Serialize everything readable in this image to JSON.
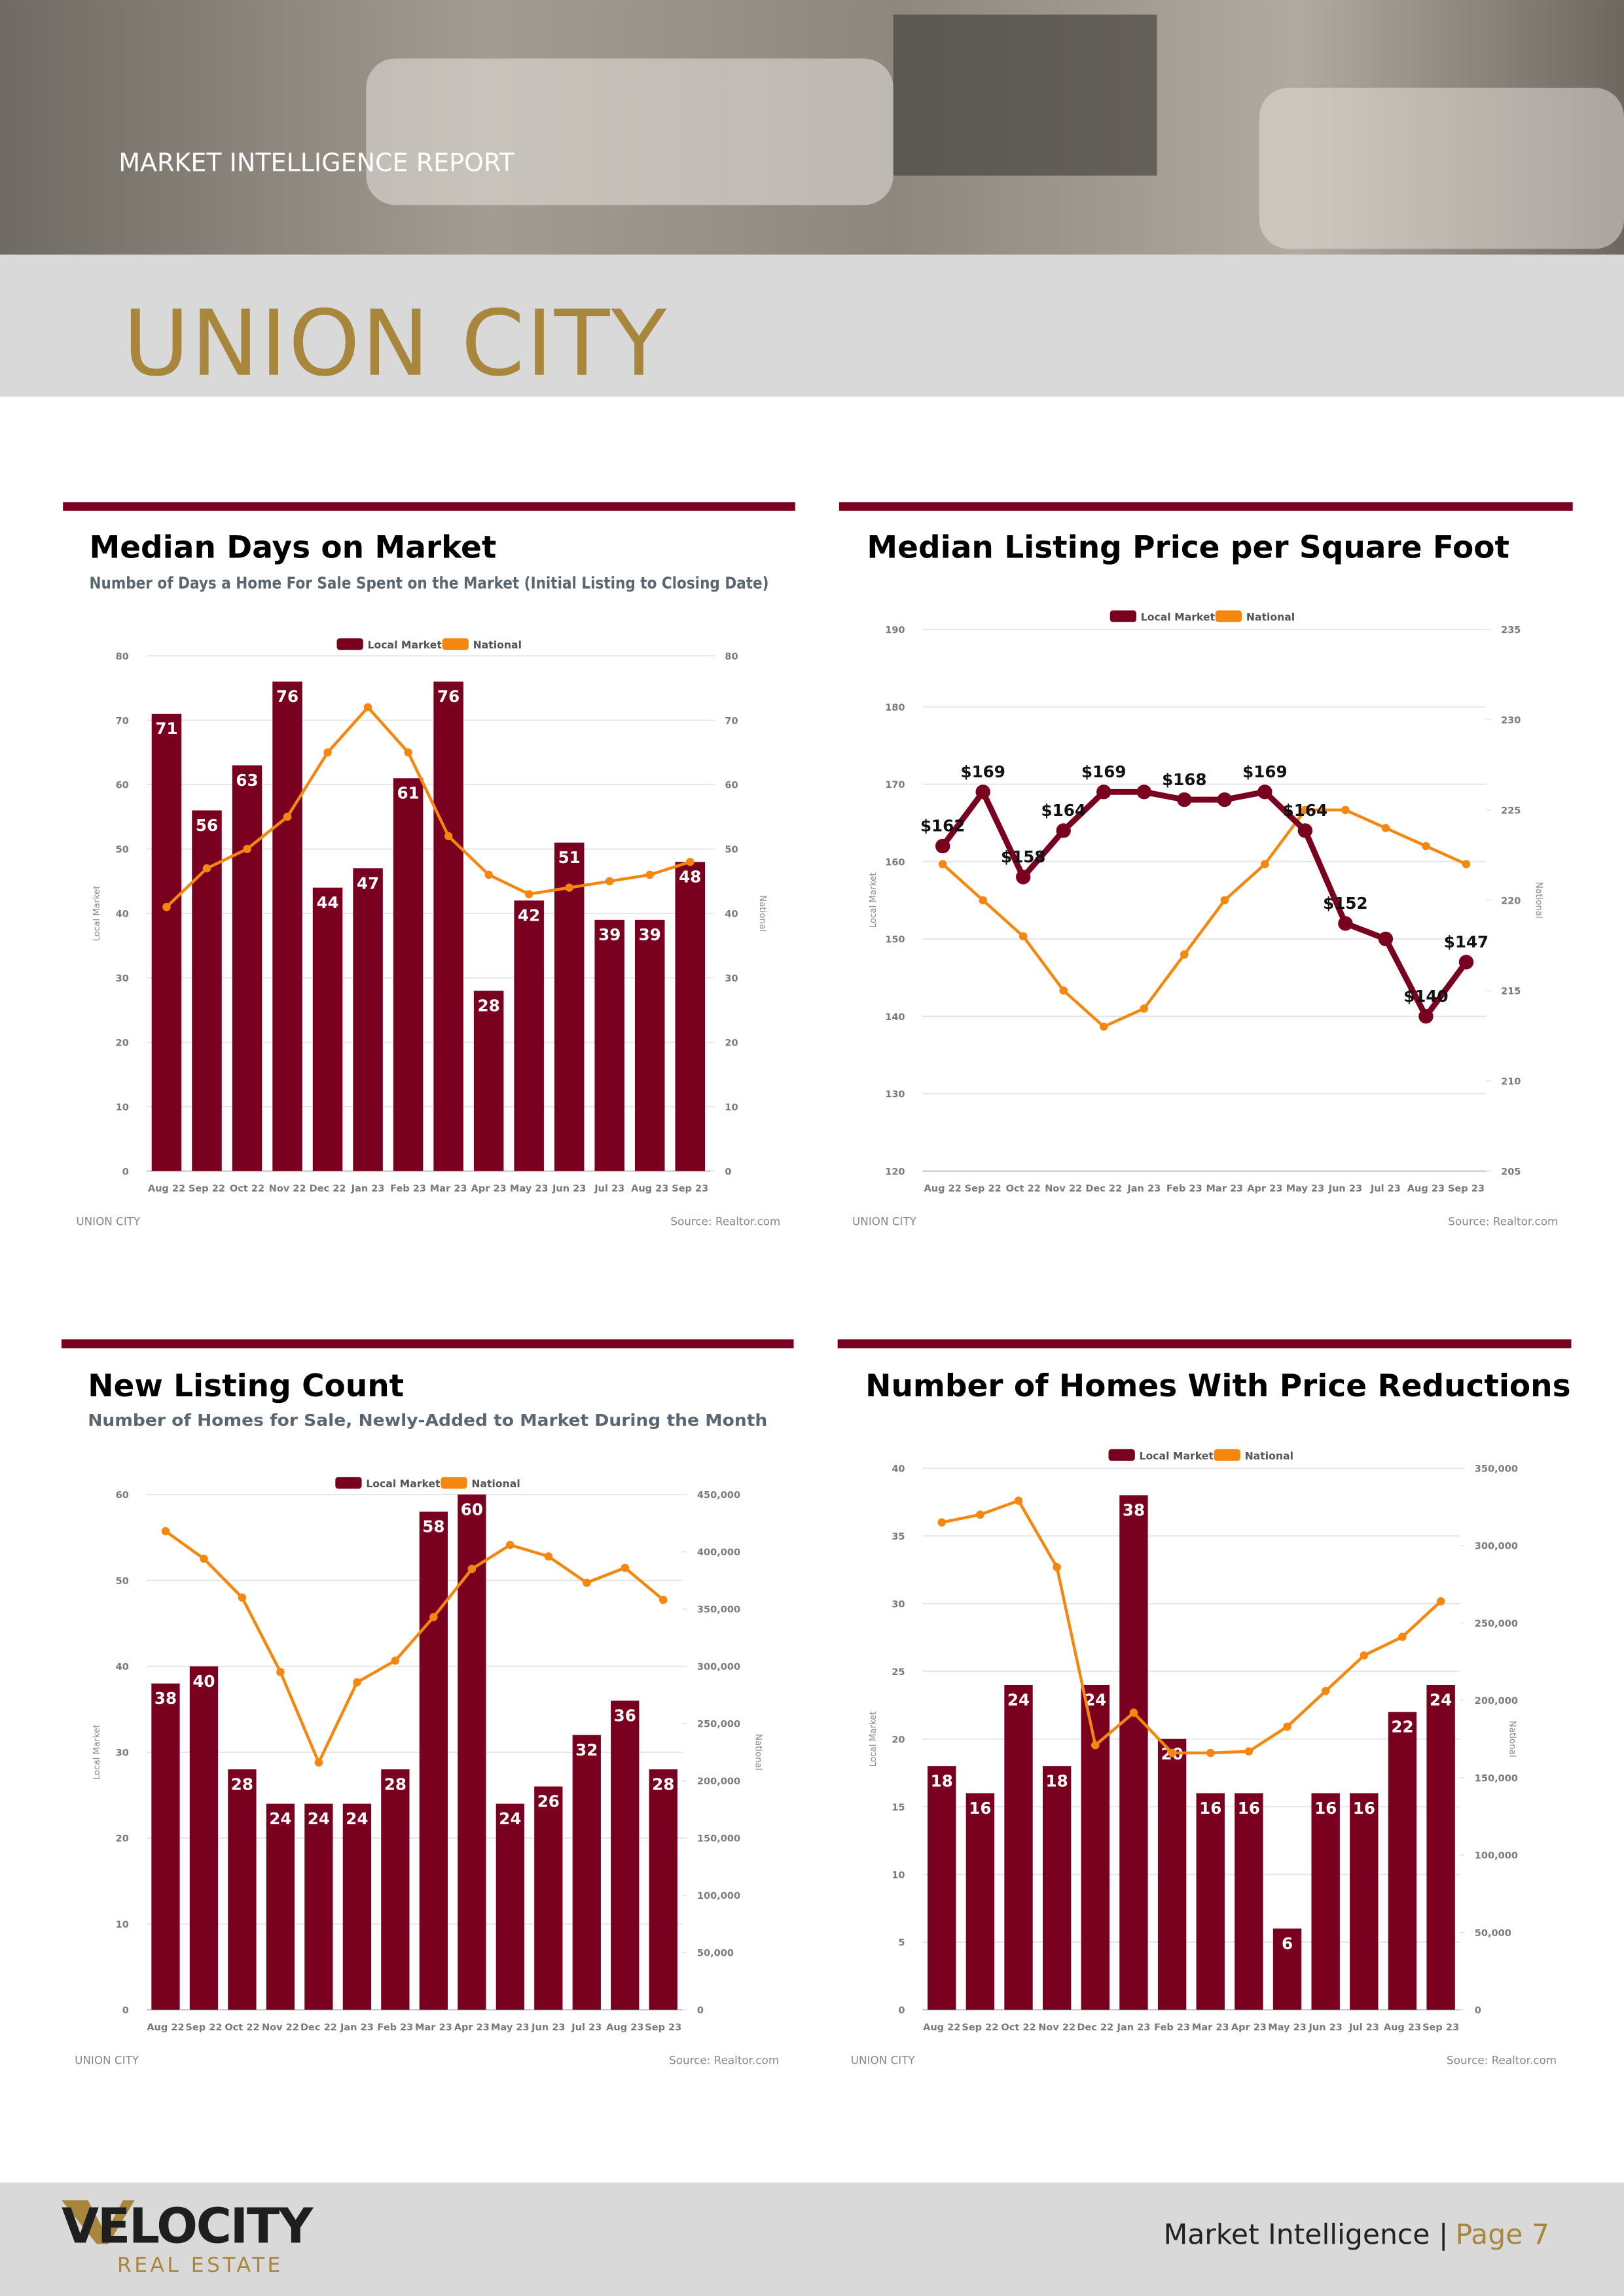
{
  "header": {
    "label": "MARKET INTELLIGENCE REPORT",
    "city": "UNION CITY"
  },
  "chart_data": [
    {
      "type": "combo",
      "title": "Median Days on Market",
      "subtitle": "Number of Days a Home For Sale Spent on the Market (Initial Listing to Closing Date)",
      "categories": [
        "Aug 22",
        "Sep 22",
        "Oct 22",
        "Nov 22",
        "Dec 22",
        "Jan 23",
        "Feb 23",
        "Mar 23",
        "Apr 23",
        "May 23",
        "Jun 23",
        "Jul 23",
        "Aug 23",
        "Sep 23"
      ],
      "series": [
        {
          "name": "Local Market",
          "color": "#7a0020",
          "mark": "bar",
          "axis": "y",
          "values": [
            71,
            56,
            63,
            76,
            44,
            47,
            61,
            76,
            28,
            42,
            51,
            39,
            39,
            48
          ]
        },
        {
          "name": "National",
          "color": "#f5870f",
          "mark": "line",
          "axis": "y2",
          "values": [
            41,
            47,
            50,
            55,
            65,
            72,
            65,
            52,
            46,
            43,
            44,
            45,
            46,
            48
          ]
        }
      ],
      "ylabel": "Local Market",
      "y2label": "National",
      "ylim": [
        0,
        80
      ],
      "yticks": [
        0,
        10,
        20,
        30,
        40,
        50,
        60,
        70,
        80
      ],
      "y2lim": [
        0,
        80
      ],
      "y2ticks": [
        0,
        10,
        20,
        30,
        40,
        50,
        60,
        70,
        80
      ],
      "grid": true,
      "note": "UNION CITY",
      "source": "Source: Realtor.com"
    },
    {
      "type": "line",
      "title": "Median Listing Price per Square Foot",
      "categories": [
        "Aug 22",
        "Sep 22",
        "Oct 22",
        "Nov 22",
        "Dec 22",
        "Jan 23",
        "Feb 23",
        "Mar 23",
        "Apr 23",
        "May 23",
        "Jun 23",
        "Jul 23",
        "Aug 23",
        "Sep 23"
      ],
      "series": [
        {
          "name": "Local Market",
          "color": "#7a0020",
          "mark": "line",
          "axis": "y",
          "values": [
            162,
            169,
            158,
            164,
            169,
            169,
            168,
            168,
            169,
            164,
            152,
            150,
            140,
            147
          ],
          "value_labels": [
            "$162",
            "$169",
            "$158",
            "$164",
            "$169",
            null,
            "$168",
            null,
            "$169",
            "$164",
            "$152",
            null,
            "$140",
            "$147"
          ]
        },
        {
          "name": "National",
          "color": "#f5870f",
          "mark": "line",
          "axis": "y2",
          "values": [
            222,
            220,
            218,
            215,
            213,
            214,
            217,
            220,
            222,
            225,
            225,
            224,
            223,
            222
          ]
        }
      ],
      "ylabel": "Local Market",
      "y2label": "National",
      "ylim": [
        120,
        190
      ],
      "yticks": [
        120,
        130,
        140,
        150,
        160,
        170,
        180,
        190
      ],
      "y2lim": [
        205,
        235
      ],
      "y2ticks": [
        205,
        210,
        215,
        220,
        225,
        230,
        235
      ],
      "grid": true,
      "note": "UNION CITY",
      "source": "Source: Realtor.com"
    },
    {
      "type": "combo",
      "title": "New Listing Count",
      "subtitle": "Number of Homes for Sale, Newly-Added to Market During the Month",
      "categories": [
        "Aug 22",
        "Sep 22",
        "Oct 22",
        "Nov 22",
        "Dec 22",
        "Jan 23",
        "Feb 23",
        "Mar 23",
        "Apr 23",
        "May 23",
        "Jun 23",
        "Jul 23",
        "Aug 23",
        "Sep 23"
      ],
      "series": [
        {
          "name": "Local Market",
          "color": "#7a0020",
          "mark": "bar",
          "axis": "y",
          "values": [
            38,
            40,
            28,
            24,
            24,
            24,
            28,
            58,
            60,
            24,
            26,
            32,
            36,
            28
          ]
        },
        {
          "name": "National",
          "color": "#f5870f",
          "mark": "line",
          "axis": "y2",
          "values": [
            418000,
            394000,
            360000,
            295000,
            216000,
            286000,
            305000,
            343000,
            385000,
            406000,
            396000,
            373000,
            386000,
            358000
          ]
        }
      ],
      "ylabel": "Local Market",
      "y2label": "National",
      "ylim": [
        0,
        60
      ],
      "yticks": [
        0,
        10,
        20,
        30,
        40,
        50,
        60
      ],
      "y2lim": [
        0,
        450000
      ],
      "y2ticks": [
        0,
        {
          "value": 50000,
          "label": "50,000"
        },
        {
          "value": 100000,
          "label": "100,000"
        },
        {
          "value": 150000,
          "label": "150,000"
        },
        {
          "value": 200000,
          "label": "200,000"
        },
        {
          "value": 250000,
          "label": "250,000"
        },
        {
          "value": 300000,
          "label": "300,000"
        },
        {
          "value": 350000,
          "label": "350,000"
        },
        {
          "value": 400000,
          "label": "400,000"
        },
        {
          "value": 450000,
          "label": "450,000"
        }
      ],
      "grid": true,
      "note": "UNION CITY",
      "source": "Source: Realtor.com"
    },
    {
      "type": "combo",
      "title": "Number of Homes With Price Reductions",
      "categories": [
        "Aug 22",
        "Sep 22",
        "Oct 22",
        "Nov 22",
        "Dec 22",
        "Jan 23",
        "Feb 23",
        "Mar 23",
        "Apr 23",
        "May 23",
        "Jun 23",
        "Jul 23",
        "Aug 23",
        "Sep 23"
      ],
      "series": [
        {
          "name": "Local Market",
          "color": "#7a0020",
          "mark": "bar",
          "axis": "y",
          "values": [
            18,
            16,
            24,
            18,
            24,
            38,
            20,
            16,
            16,
            6,
            16,
            16,
            22,
            24
          ]
        },
        {
          "name": "National",
          "color": "#f5870f",
          "mark": "line",
          "axis": "y2",
          "values": [
            315000,
            320000,
            329000,
            286000,
            171000,
            192000,
            166000,
            166000,
            167000,
            183000,
            206000,
            229000,
            241000,
            264000
          ]
        }
      ],
      "ylabel": "Local Market",
      "y2label": "National",
      "ylim": [
        0,
        40
      ],
      "yticks": [
        0,
        5,
        10,
        15,
        20,
        25,
        30,
        35,
        40
      ],
      "y2lim": [
        0,
        350000
      ],
      "y2ticks": [
        0,
        {
          "value": 50000,
          "label": "50,000"
        },
        {
          "value": 100000,
          "label": "100,000"
        },
        {
          "value": 150000,
          "label": "150,000"
        },
        {
          "value": 200000,
          "label": "200,000"
        },
        {
          "value": 250000,
          "label": "250,000"
        },
        {
          "value": 300000,
          "label": "300,000"
        },
        {
          "value": 350000,
          "label": "350,000"
        }
      ],
      "grid": true,
      "note": "UNION CITY",
      "source": "Source: Realtor.com"
    }
  ],
  "footer": {
    "brand": "VELOCITY",
    "tagline": "REAL ESTATE",
    "report": "Market Intelligence |",
    "page": "Page 7"
  }
}
